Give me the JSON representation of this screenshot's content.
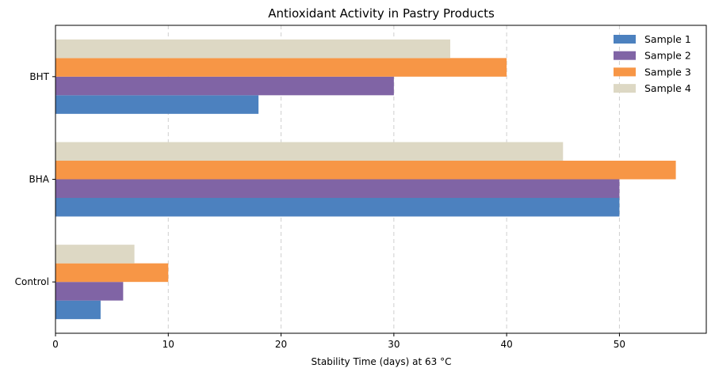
{
  "chart_data": {
    "type": "bar",
    "orientation": "horizontal",
    "title": "Antioxidant Activity in Pastry Products",
    "xlabel": "Stability Time (days) at 63 °C",
    "ylabel": "",
    "categories": [
      "BHT",
      "BHA",
      "Control"
    ],
    "series": [
      {
        "name": "Sample 1",
        "color": "#4c81bf",
        "values": [
          18,
          50,
          4
        ]
      },
      {
        "name": "Sample 2",
        "color": "#8064a5",
        "values": [
          30,
          50,
          6
        ]
      },
      {
        "name": "Sample 3",
        "color": "#f79646",
        "values": [
          40,
          55,
          10
        ]
      },
      {
        "name": "Sample 4",
        "color": "#ddd8c4",
        "values": [
          35,
          45,
          7
        ]
      }
    ],
    "xlim": [
      0,
      57.7
    ],
    "xticks": [
      0,
      10,
      20,
      30,
      40,
      50
    ],
    "grid": "x-dashed",
    "legend": "top-right"
  }
}
